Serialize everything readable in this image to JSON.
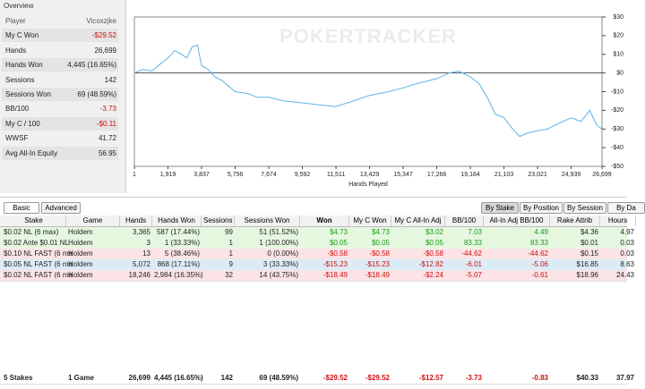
{
  "overview": {
    "title": "Overview",
    "header": [
      "Player",
      "Vicoxzjke"
    ],
    "rows": [
      [
        "My C Won",
        "-$29.52"
      ],
      [
        "Hands",
        "26,699"
      ],
      [
        "Hands Won",
        "4,445 (16.65%)"
      ],
      [
        "Sessions",
        "142"
      ],
      [
        "Sessions Won",
        "69 (48.59%)"
      ],
      [
        "BB/100",
        "-3.73"
      ],
      [
        "My C / 100",
        "-$0.11"
      ],
      [
        "WWSF",
        "41.72"
      ],
      [
        "Avg All-In Equity",
        "56.95"
      ]
    ]
  },
  "chart_data": {
    "type": "line",
    "watermark": "POKERTRACKER",
    "x_label": "Hands Played",
    "x": [
      1,
      500,
      1000,
      1500,
      1919,
      2300,
      2700,
      3000,
      3300,
      3600,
      3837,
      4200,
      4600,
      5000,
      5500,
      5756,
      6500,
      7000,
      7674,
      8500,
      9592,
      10500,
      11511,
      12500,
      13429,
      14500,
      15347,
      16000,
      17266,
      18000,
      18500,
      19184,
      19700,
      20200,
      20600,
      21103,
      21600,
      22000,
      22500,
      23021,
      23600,
      24000,
      24939,
      25500,
      26000,
      26400,
      26699
    ],
    "series": [
      {
        "name": "My C Won",
        "color": "#5ab4e6",
        "values": [
          0,
          2,
          1,
          5,
          8,
          12,
          10,
          8,
          14,
          15,
          4,
          2,
          -2,
          -4,
          -8,
          -10,
          -11,
          -13,
          -13,
          -15,
          -16,
          -17,
          -18,
          -15,
          -12,
          -10,
          -8,
          -6,
          -3,
          0,
          1,
          -2,
          -6,
          -14,
          -22,
          -24,
          -30,
          -34,
          -32,
          -31,
          -30,
          -28,
          -24,
          -26,
          -20,
          -28,
          -30
        ]
      }
    ],
    "xlim": [
      1,
      26699
    ],
    "xticks": [
      1,
      {
        "value": 1919,
        "label": "1,919"
      },
      {
        "value": 3837,
        "label": "3,837"
      },
      {
        "value": 5756,
        "label": "5,756"
      },
      {
        "value": 7674,
        "label": "7,674"
      },
      {
        "value": 9592,
        "label": "9,592"
      },
      {
        "value": 11511,
        "label": "11,511"
      },
      {
        "value": 13429,
        "label": "13,429"
      },
      {
        "value": 15347,
        "label": "15,347"
      },
      {
        "value": 17266,
        "label": "17,266"
      },
      {
        "value": 19184,
        "label": "19,184"
      },
      {
        "value": 21103,
        "label": "21,103"
      },
      {
        "value": 23021,
        "label": "23,021"
      },
      {
        "value": 24939,
        "label": "24,939"
      },
      {
        "value": 26699,
        "label": "26,699"
      }
    ],
    "ylim": [
      -50,
      30
    ],
    "yticks": [
      {
        "value": 30,
        "label": "$30"
      },
      {
        "value": 20,
        "label": "$20"
      },
      {
        "value": 10,
        "label": "$10"
      },
      {
        "value": 0,
        "label": "$0"
      },
      {
        "value": -10,
        "label": "-$10"
      },
      {
        "value": -20,
        "label": "-$20"
      },
      {
        "value": -30,
        "label": "-$30"
      },
      {
        "value": -40,
        "label": "-$40"
      },
      {
        "value": -50,
        "label": "-$50"
      }
    ]
  },
  "tabs_left": [
    "Basic",
    "Advanced"
  ],
  "tabs_right": [
    "By Stake",
    "By Position",
    "By Session",
    "By Da"
  ],
  "table": {
    "columns": [
      "Stake",
      "Game",
      "Hands",
      "Hands Won",
      "Sessions",
      "Sessions Won",
      "Won",
      "My C Won",
      "My C All-In Adj",
      "BB/100",
      "All-In Adj BB/100",
      "Rake Attrib",
      "Hours"
    ],
    "rows": [
      [
        "$0.02 NL (6 max)",
        "Holdem",
        "3,365",
        "587 (17.44%)",
        "99",
        "51 (51.52%)",
        "$4.73",
        "$4.73",
        "$3.02",
        "7.03",
        "4.49",
        "$4.36",
        "4.97"
      ],
      [
        "$0.02 Ante $0.01 NL",
        "Holdem",
        "3",
        "1 (33.33%)",
        "1",
        "1 (100.00%)",
        "$0.05",
        "$0.05",
        "$0.05",
        "83.33",
        "83.33",
        "$0.01",
        "0.03"
      ],
      [
        "$0.10 NL FAST (6 ma",
        "Holdem",
        "13",
        "5 (38.46%)",
        "1",
        "0 (0.00%)",
        "-$0.58",
        "-$0.58",
        "-$0.58",
        "-44.62",
        "-44.62",
        "$0.15",
        "0.03"
      ],
      [
        "$0.05 NL FAST (6 ma",
        "Holdem",
        "5,072",
        "868 (17.11%)",
        "9",
        "3 (33.33%)",
        "-$15.23",
        "-$15.23",
        "-$12.82",
        "-6.01",
        "-5.06",
        "$16.85",
        "8.63"
      ],
      [
        "$0.02 NL FAST (6 ma",
        "Holdem",
        "18,246",
        "2,984 (16.35%)",
        "32",
        "14 (43.75%)",
        "-$18.49",
        "-$18.49",
        "-$2.24",
        "-5.07",
        "-0.61",
        "$18.96",
        "24.43"
      ]
    ],
    "total": [
      "5 Stakes",
      "1 Game",
      "26,699",
      "4,445 (16.65%)",
      "142",
      "69 (48.59%)",
      "-$29.52",
      "-$29.52",
      "-$12.57",
      "-3.73",
      "-0.83",
      "$40.33",
      "37.97"
    ]
  }
}
